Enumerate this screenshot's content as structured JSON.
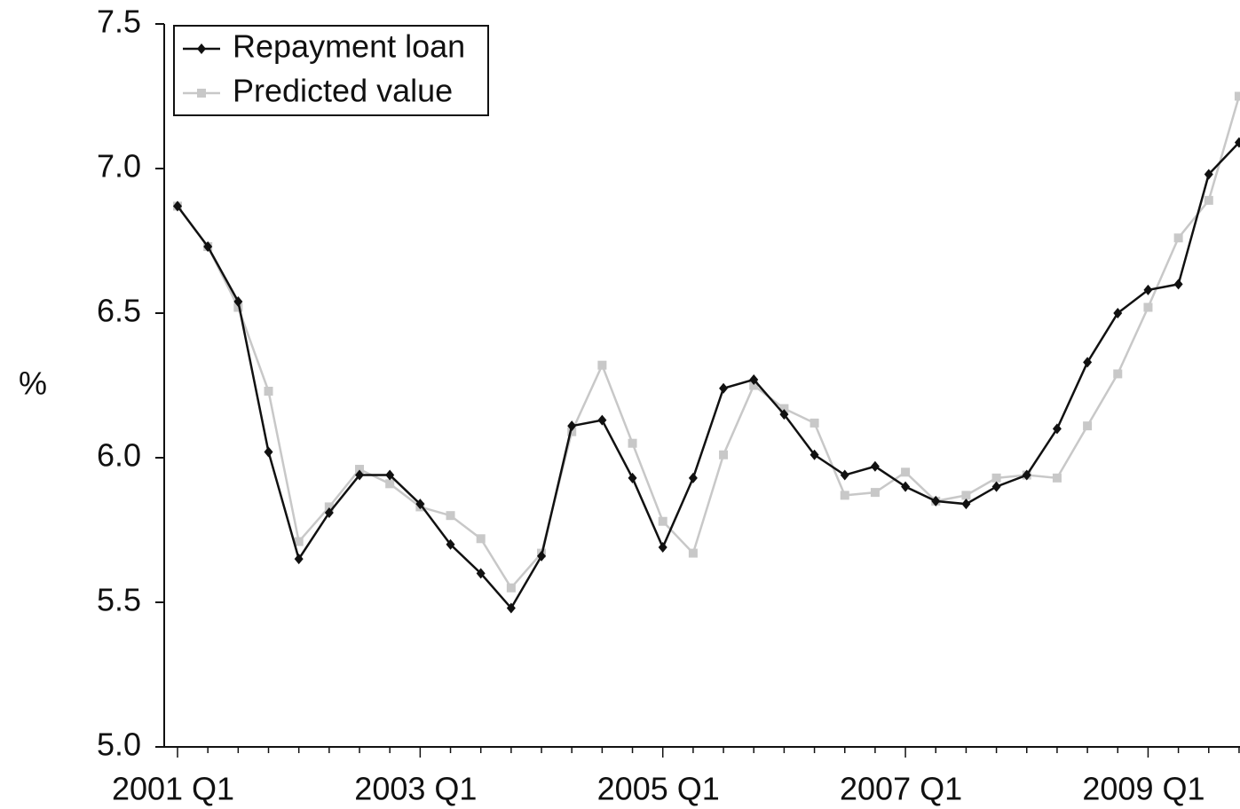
{
  "chart_data": {
    "type": "line",
    "y_label": "%",
    "categories": [
      "2001 Q1",
      null,
      null,
      null,
      null,
      null,
      null,
      null,
      "2003 Q1",
      null,
      null,
      null,
      null,
      null,
      null,
      null,
      "2005 Q1",
      null,
      null,
      null,
      null,
      null,
      null,
      null,
      "2007 Q1",
      null,
      null,
      null,
      null,
      null,
      null,
      null,
      "2009 Q1",
      null,
      null,
      null
    ],
    "series": [
      {
        "name": "Repayment loan",
        "color": "#111111",
        "marker": "diamond",
        "values": [
          6.87,
          6.73,
          6.54,
          6.02,
          5.65,
          5.81,
          5.94,
          5.94,
          5.84,
          5.7,
          5.6,
          5.48,
          5.66,
          6.11,
          6.13,
          5.93,
          5.69,
          5.93,
          6.24,
          6.27,
          6.15,
          6.01,
          5.94,
          5.97,
          5.9,
          5.85,
          5.84,
          5.9,
          5.94,
          6.1,
          6.33,
          6.5,
          6.58,
          6.6,
          6.98,
          7.09
        ]
      },
      {
        "name": "Predicted value",
        "color": "#c8c8c8",
        "marker": "square",
        "values": [
          6.87,
          6.73,
          6.52,
          6.23,
          5.71,
          5.83,
          5.96,
          5.91,
          5.83,
          5.8,
          5.72,
          5.55,
          5.67,
          6.09,
          6.32,
          6.05,
          5.78,
          5.67,
          6.01,
          6.25,
          6.17,
          6.12,
          5.87,
          5.88,
          5.95,
          5.85,
          5.87,
          5.93,
          5.94,
          5.93,
          6.11,
          6.29,
          6.52,
          6.76,
          6.89,
          7.25
        ]
      }
    ],
    "ylim": [
      5,
      7.5
    ],
    "yticks": [
      {
        "value": 5,
        "label": "5.0"
      },
      5.5,
      {
        "value": 6,
        "label": "6.0"
      },
      6.5,
      {
        "value": 7,
        "label": "7.0"
      },
      7.5
    ],
    "grid": false,
    "legend": "upper left"
  }
}
